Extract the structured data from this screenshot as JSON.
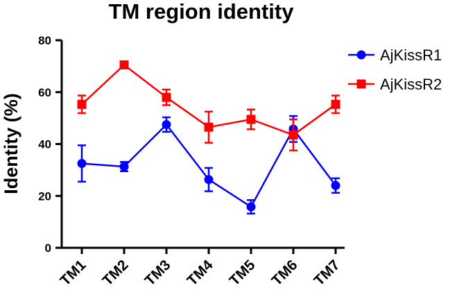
{
  "chart_data": {
    "type": "line",
    "title": "TM region identity",
    "xlabel": "",
    "ylabel": "Identity (%)",
    "categories": [
      "TM1",
      "TM2",
      "TM3",
      "TM4",
      "TM5",
      "TM6",
      "TM7"
    ],
    "yticks": [
      "0",
      "20",
      "40",
      "60",
      "80"
    ],
    "ylim": [
      0,
      80
    ],
    "legend_position": "top-right",
    "series": [
      {
        "name": "AjKissR1",
        "color": "#0000ff",
        "marker": "circle",
        "values": [
          32.5,
          31.3,
          47.5,
          26.3,
          15.8,
          45.8,
          24.0
        ],
        "error": [
          7.0,
          1.8,
          2.8,
          4.5,
          2.6,
          5.0,
          2.8
        ]
      },
      {
        "name": "AjKissR2",
        "color": "#ff0000",
        "marker": "square",
        "values": [
          55.3,
          70.5,
          58.0,
          46.5,
          49.5,
          43.5,
          55.3
        ],
        "error": [
          3.4,
          1.2,
          3.0,
          6.0,
          3.8,
          6.0,
          3.4
        ]
      }
    ]
  }
}
